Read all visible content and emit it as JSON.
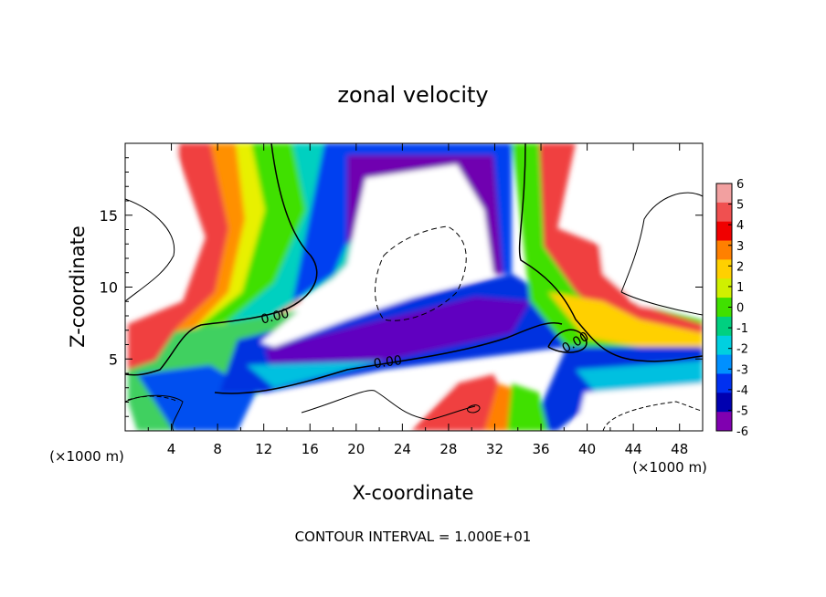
{
  "chart_data": {
    "type": "heatmap",
    "title": "zonal velocity",
    "xlabel": "X-coordinate",
    "ylabel": "Z-coordinate",
    "x_unit": "(×1000 m)",
    "y_unit": "(×1000 m)",
    "xlim": [
      0,
      50
    ],
    "ylim": [
      0,
      20
    ],
    "x_ticks": [
      "4",
      "8",
      "12",
      "16",
      "20",
      "24",
      "28",
      "32",
      "36",
      "40",
      "44",
      "48"
    ],
    "y_ticks": [
      "5",
      "10",
      "15"
    ],
    "footer": "CONTOUR INTERVAL = 1.000E+01",
    "colorbar": {
      "ticks": [
        "6",
        "5",
        "4",
        "3",
        "2",
        "1",
        "0",
        "-1",
        "-2",
        "-3",
        "-4",
        "-5",
        "-6"
      ],
      "colors": [
        "#f2a0a0",
        "#f05050",
        "#f00000",
        "#ff8000",
        "#ffd000",
        "#d0f000",
        "#40e000",
        "#00d080",
        "#00d0e0",
        "#0090ff",
        "#0030f0",
        "#0000b0",
        "#8000b0"
      ]
    },
    "contour_labels": [
      "0.00",
      "0.00",
      "0.00"
    ]
  }
}
